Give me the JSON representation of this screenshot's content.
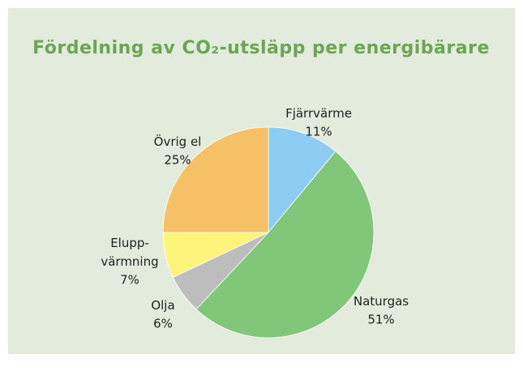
{
  "chart_data": {
    "type": "pie",
    "title": "Fördelning av CO₂-utsläpp per energibärare",
    "categories": [
      "Fjärrvärme",
      "Naturgas",
      "Olja",
      "Elupp-\nvärmning",
      "Övrig el"
    ],
    "values": [
      11,
      51,
      6,
      7,
      25
    ],
    "value_labels": [
      "11%",
      "51%",
      "6%",
      "7%",
      "25%"
    ],
    "colors": [
      "#8ecdf3",
      "#80c77a",
      "#bdbdbd",
      "#fdf47c",
      "#f5c066"
    ]
  }
}
